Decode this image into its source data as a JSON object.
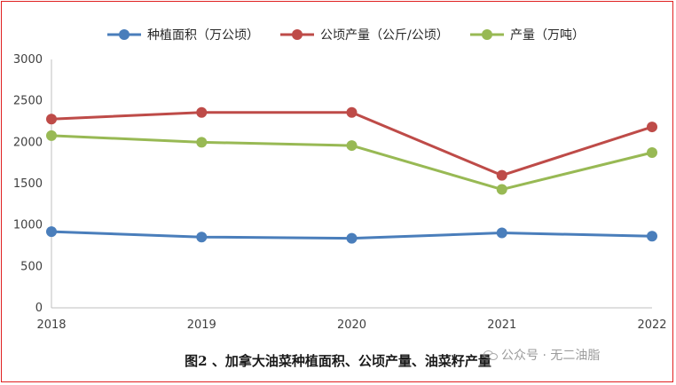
{
  "chart_data": {
    "type": "line",
    "x": [
      "2018",
      "2019",
      "2020",
      "2021",
      "2022"
    ],
    "series": [
      {
        "name": "种植面积（万公顷）",
        "color": "#4a7ebb",
        "values": [
          920,
          855,
          840,
          905,
          865
        ]
      },
      {
        "name": "公顷产量（公斤/公顷）",
        "color": "#be4b48",
        "values": [
          2280,
          2360,
          2360,
          1600,
          2185
        ]
      },
      {
        "name": "产量（万吨）",
        "color": "#98b954",
        "values": [
          2080,
          2000,
          1960,
          1430,
          1875
        ]
      }
    ],
    "ylim": [
      0,
      3000
    ],
    "yticks": [
      "0",
      "500",
      "1000",
      "1500",
      "2000",
      "2500",
      "3000"
    ],
    "grid": false,
    "legend_position": "top"
  },
  "caption": "图2 、加拿大油菜种植面积、公顷产量、油菜籽产量",
  "watermark": "公众号 · 无二油脂"
}
